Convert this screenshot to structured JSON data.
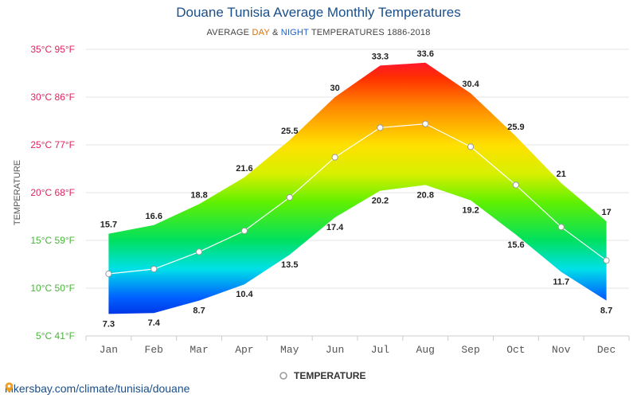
{
  "title": "Douane Tunisia Average Monthly Temperatures",
  "subtitle": {
    "prefix": "AVERAGE ",
    "day": "DAY",
    "amp": " & ",
    "night": "NIGHT",
    "suffix": " TEMPERATURES 1886-2018"
  },
  "footer": {
    "url": "hikersbay.com/climate/tunisia/douane"
  },
  "chart_data": {
    "type": "area",
    "title": "Douane Tunisia Average Monthly Temperatures",
    "ylabel": "TEMPERATURE",
    "xlabel": "",
    "ylim": [
      5,
      35
    ],
    "grid": true,
    "legend_position": "bottom-center",
    "categories": [
      "Jan",
      "Feb",
      "Mar",
      "Apr",
      "May",
      "Jun",
      "Jul",
      "Aug",
      "Sep",
      "Oct",
      "Nov",
      "Dec"
    ],
    "y_ticks": [
      {
        "value": 35,
        "label": "35°C 95°F",
        "color": "#e0245e"
      },
      {
        "value": 30,
        "label": "30°C 86°F",
        "color": "#e0245e"
      },
      {
        "value": 25,
        "label": "25°C 77°F",
        "color": "#e0245e"
      },
      {
        "value": 20,
        "label": "20°C 68°F",
        "color": "#e0245e"
      },
      {
        "value": 15,
        "label": "15°C 59°F",
        "color": "#49b53a"
      },
      {
        "value": 10,
        "label": "10°C 50°F",
        "color": "#49b53a"
      },
      {
        "value": 5,
        "label": "5°C 41°F",
        "color": "#49b53a"
      }
    ],
    "series": [
      {
        "name": "Day",
        "values": [
          15.7,
          16.6,
          18.8,
          21.6,
          25.5,
          30,
          33.3,
          33.6,
          30.4,
          25.9,
          21,
          17
        ]
      },
      {
        "name": "Night",
        "values": [
          7.3,
          7.4,
          8.7,
          10.4,
          13.5,
          17.4,
          20.2,
          20.8,
          19.2,
          15.6,
          11.7,
          8.7
        ]
      },
      {
        "name": "TEMPERATURE",
        "values": [
          11.5,
          12,
          13.8,
          16,
          19.5,
          23.7,
          26.8,
          27.2,
          24.8,
          20.8,
          16.4,
          12.9
        ]
      }
    ],
    "legend": [
      "TEMPERATURE"
    ],
    "colors": {
      "gradient_stops": [
        {
          "temp": 5,
          "color": "#0000c8"
        },
        {
          "temp": 9,
          "color": "#0060ff"
        },
        {
          "temp": 12,
          "color": "#00e0e8"
        },
        {
          "temp": 15,
          "color": "#00e060"
        },
        {
          "temp": 19,
          "color": "#60f000"
        },
        {
          "temp": 22,
          "color": "#d8f000"
        },
        {
          "temp": 25,
          "color": "#ffe000"
        },
        {
          "temp": 29,
          "color": "#ff8800"
        },
        {
          "temp": 32,
          "color": "#ff3000"
        },
        {
          "temp": 35,
          "color": "#ff0050"
        }
      ],
      "grid": "#e6e6e6",
      "axis": "#cccccc",
      "line": "#ffffff",
      "marker_fill": "#ffffff",
      "marker_stroke": "#999999",
      "value_label": "#222222",
      "month_label": "#555555"
    }
  }
}
